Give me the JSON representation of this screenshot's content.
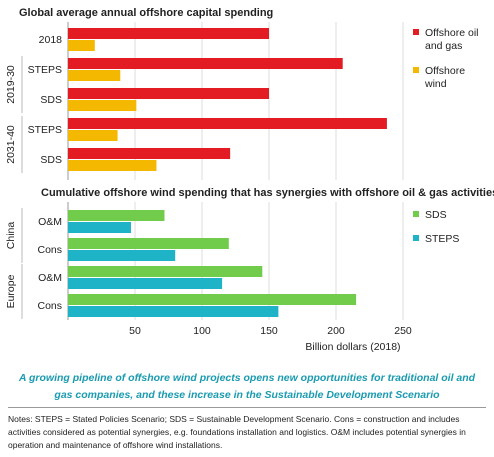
{
  "chart_data": [
    {
      "type": "bar",
      "orientation": "horizontal",
      "title": "Global  average annual offshore capital spending",
      "categories": [
        "2018",
        "STEPS",
        "SDS",
        "STEPS",
        "SDS"
      ],
      "groups": [
        {
          "label": "2019-30",
          "categories": [
            "STEPS",
            "SDS"
          ]
        },
        {
          "label": "2031-40",
          "categories": [
            "STEPS",
            "SDS"
          ]
        }
      ],
      "series": [
        {
          "name": "Offshore oil and gas",
          "color": "#e31b23",
          "values": [
            150,
            205,
            150,
            238,
            121
          ]
        },
        {
          "name": "Offshore wind",
          "color": "#f5b800",
          "values": [
            20,
            39,
            51,
            37,
            66
          ]
        }
      ],
      "xlim": [
        0,
        260
      ],
      "legend": "right"
    },
    {
      "type": "bar",
      "orientation": "horizontal",
      "title": "Cumulative offshore wind spending that has synergies with offshore oil & gas activities",
      "categories": [
        "O&M",
        "Cons",
        "O&M",
        "Cons"
      ],
      "groups": [
        {
          "label": "China",
          "categories": [
            "O&M",
            "Cons"
          ]
        },
        {
          "label": "Europe",
          "categories": [
            "O&M",
            "Cons"
          ]
        }
      ],
      "series": [
        {
          "name": "SDS",
          "color": "#70cc4a",
          "values": [
            72,
            120,
            145,
            215
          ]
        },
        {
          "name": "STEPS",
          "color": "#1fb3c8",
          "values": [
            47,
            80,
            115,
            157
          ]
        }
      ],
      "xticks": [
        "50",
        "100",
        "150",
        "200",
        "250"
      ],
      "xtick_values": [
        50,
        100,
        150,
        200,
        250
      ],
      "xlim": [
        0,
        260
      ],
      "xlabel": "Billion dollars (2018)",
      "legend": "right"
    }
  ],
  "caption": "A growing pipeline of offshore wind projects opens new opportunities for traditional oil and gas companies, and these increase in the Sustainable Development Scenario",
  "notes": "Notes: STEPS = Stated Policies Scenario; SDS = Sustainable Development Scenario. Cons = construction and includes activities considered as potential synergies, e.g. foundations installation and logistics. O&M includes potential synergies in operation and maintenance of offshore wind installations."
}
